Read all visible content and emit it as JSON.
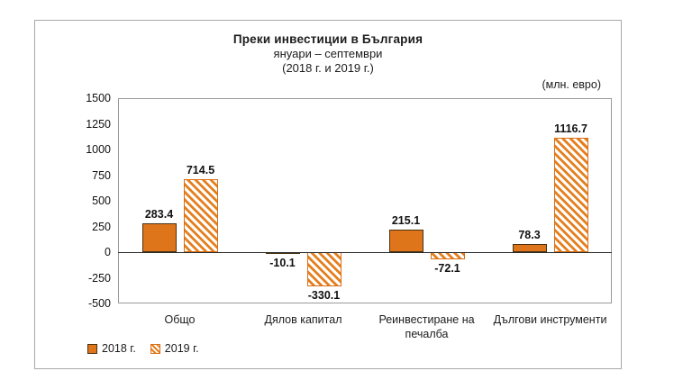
{
  "header": {
    "title": "Преки  инвестиции в България",
    "subtitle1": "януари – септември",
    "subtitle2": "(2018 г. и 2019 г.)",
    "unit": "(млн. евро)"
  },
  "chart_data": {
    "type": "bar",
    "title": "Преки инвестиции в България",
    "subtitle": "януари – септември (2018 г. и 2019 г.)",
    "unit": "(млн. евро)",
    "categories": [
      "Общо",
      "Дялов капитал",
      "Реинвестиране на печалба",
      "Дългови инструменти"
    ],
    "series": [
      {
        "name": "2018 г.",
        "style": "solid",
        "values": [
          283.4,
          -10.1,
          215.1,
          78.3
        ]
      },
      {
        "name": "2019 г.",
        "style": "hatched",
        "values": [
          714.5,
          -330.1,
          -72.1,
          1116.7
        ]
      }
    ],
    "ylim": [
      -500,
      1500
    ],
    "yticks": [
      1500,
      1250,
      1000,
      750,
      500,
      250,
      0,
      -250,
      -500
    ],
    "grid": false,
    "legend_position": "bottom-left",
    "colors": {
      "bar_fill": "#df751b",
      "hatch_stripe": "#e4801f"
    }
  }
}
